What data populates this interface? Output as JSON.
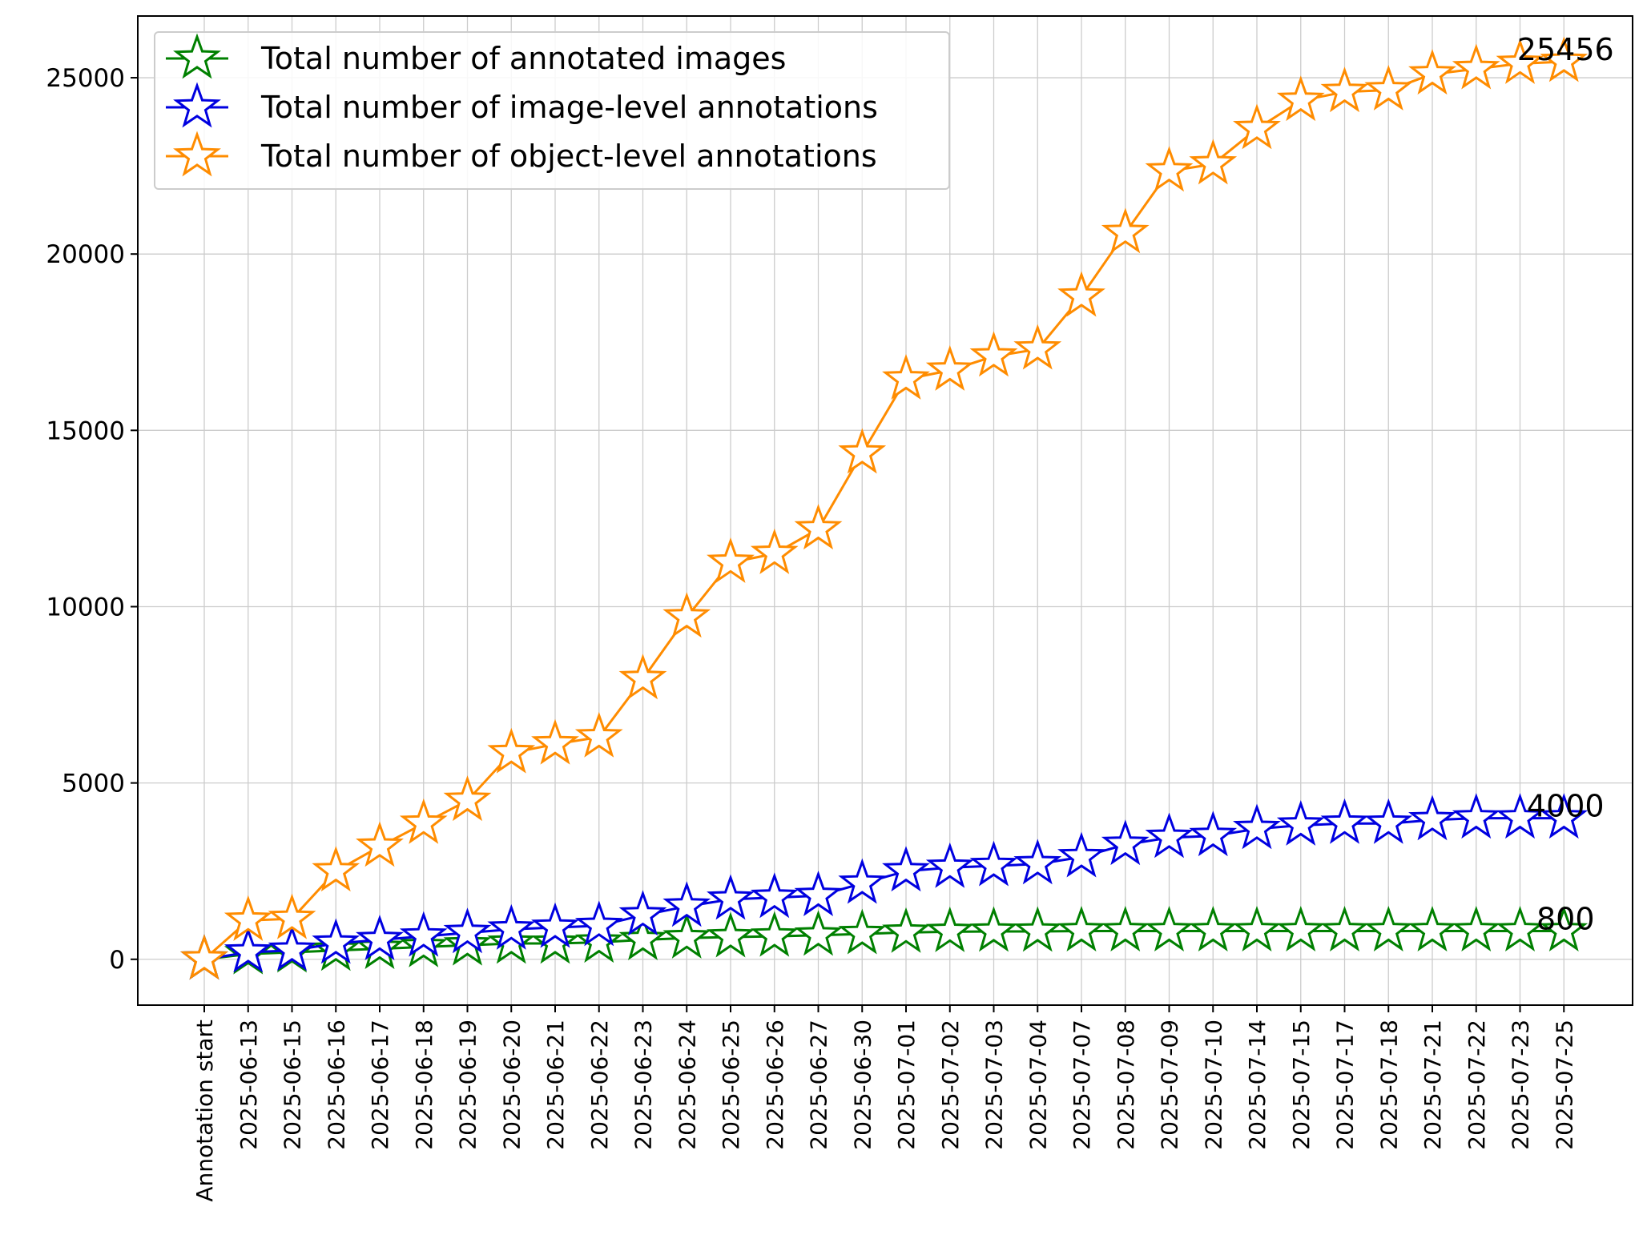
{
  "chart_data": {
    "type": "line",
    "title": "",
    "xlabel": "",
    "ylabel": "",
    "categories": [
      "Annotation start",
      "2025-06-13",
      "2025-06-15",
      "2025-06-16",
      "2025-06-17",
      "2025-06-18",
      "2025-06-19",
      "2025-06-20",
      "2025-06-21",
      "2025-06-22",
      "2025-06-23",
      "2025-06-24",
      "2025-06-25",
      "2025-06-26",
      "2025-06-27",
      "2025-06-30",
      "2025-07-01",
      "2025-07-02",
      "2025-07-03",
      "2025-07-04",
      "2025-07-07",
      "2025-07-08",
      "2025-07-09",
      "2025-07-10",
      "2025-07-14",
      "2025-07-15",
      "2025-07-17",
      "2025-07-18",
      "2025-07-21",
      "2025-07-22",
      "2025-07-23",
      "2025-07-25"
    ],
    "ylim": [
      -1300,
      26750
    ],
    "yticks": [
      0,
      5000,
      10000,
      15000,
      20000,
      25000
    ],
    "ytick_labels": [
      "0",
      "5000",
      "10000",
      "15000",
      "20000",
      "25000"
    ],
    "grid": true,
    "legend_position": "top-left",
    "marker": "star",
    "series": [
      {
        "name": "Total number of annotated images",
        "color": "#008000",
        "values": [
          0,
          150,
          200,
          250,
          300,
          350,
          400,
          450,
          450,
          480,
          550,
          600,
          630,
          650,
          680,
          720,
          760,
          780,
          790,
          790,
          800,
          800,
          800,
          800,
          800,
          800,
          800,
          800,
          800,
          800,
          800,
          800
        ],
        "end_label": "800"
      },
      {
        "name": "Total number of image-level annotations",
        "color": "#0000e0",
        "values": [
          0,
          200,
          250,
          450,
          550,
          650,
          750,
          850,
          900,
          950,
          1250,
          1500,
          1700,
          1750,
          1800,
          2150,
          2500,
          2600,
          2650,
          2700,
          2900,
          3250,
          3450,
          3500,
          3700,
          3800,
          3850,
          3850,
          3950,
          4000,
          4000,
          4000
        ],
        "end_label": "4000"
      },
      {
        "name": "Total number of object-level annotations",
        "color": "#ff8c00",
        "values": [
          0,
          1100,
          1150,
          2500,
          3200,
          3850,
          4500,
          5850,
          6100,
          6300,
          7950,
          9700,
          11250,
          11500,
          12200,
          14350,
          16450,
          16700,
          17100,
          17300,
          18800,
          20600,
          22350,
          22550,
          23550,
          24350,
          24600,
          24650,
          25100,
          25250,
          25400,
          25456
        ],
        "end_label": "25456"
      }
    ]
  }
}
